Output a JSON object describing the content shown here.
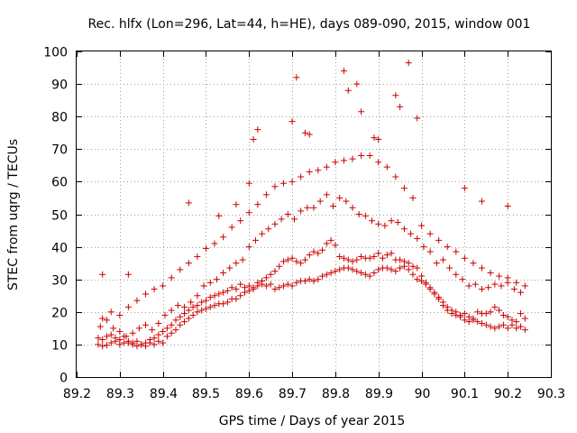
{
  "chart_data": {
    "type": "scatter",
    "title": "Rec. hlfx (Lon=296, Lat=44, h=HE), days 089-090, 2015, window 001",
    "xlabel": "GPS time / Days of year 2015",
    "ylabel": "STEC from uqrg / TECUs",
    "xlim": [
      89.2,
      90.3
    ],
    "ylim": [
      0,
      100
    ],
    "xticks": [
      "89.2",
      "89.3",
      "89.4",
      "89.5",
      "89.6",
      "89.7",
      "89.8",
      "89.9",
      "90",
      "90.1",
      "90.2",
      "90.3"
    ],
    "yticks": [
      "0",
      "10",
      "20",
      "30",
      "40",
      "50",
      "60",
      "70",
      "80",
      "90",
      "100"
    ],
    "grid": true,
    "marker": "plus",
    "color": "#cc0000",
    "series": [
      {
        "x": [
          89.25,
          89.26,
          89.27,
          89.28,
          89.29,
          89.3,
          89.31,
          89.32,
          89.33,
          89.34,
          89.35,
          89.36,
          89.37,
          89.38,
          89.39,
          89.4,
          89.41,
          89.42,
          89.43,
          89.44,
          89.45,
          89.46,
          89.47,
          89.48,
          89.49,
          89.5,
          89.51,
          89.52,
          89.53,
          89.54,
          89.55,
          89.56,
          89.57,
          89.58,
          89.59,
          89.6,
          89.61,
          89.62,
          89.63,
          89.64,
          89.65,
          89.66,
          89.67,
          89.68,
          89.69,
          89.7,
          89.71,
          89.72,
          89.73,
          89.74,
          89.75,
          89.76,
          89.77,
          89.78,
          89.79,
          89.8,
          89.81,
          89.82,
          89.83,
          89.84,
          89.85,
          89.86,
          89.87,
          89.88,
          89.89,
          89.9,
          89.91,
          89.92,
          89.93,
          89.94,
          89.95,
          89.96,
          89.97,
          89.98,
          89.99,
          90.0,
          90.01,
          90.02,
          90.03,
          90.04,
          90.05,
          90.06,
          90.07,
          90.08,
          90.09,
          90.1,
          90.11,
          90.12,
          90.13,
          90.14,
          90.15,
          90.16,
          90.17,
          90.18,
          90.19,
          90.2,
          90.21,
          90.22,
          90.23,
          90.24,
          89.25,
          89.26,
          89.27,
          89.28,
          89.29,
          89.3,
          89.31,
          89.32,
          89.33,
          89.34,
          89.35,
          89.36,
          89.37,
          89.38,
          89.39,
          89.4,
          89.41,
          89.42,
          89.43,
          89.44,
          89.45,
          89.46,
          89.47,
          89.48,
          89.49,
          89.5,
          89.51,
          89.52,
          89.53,
          89.54,
          89.55,
          89.56,
          89.57,
          89.58,
          89.59,
          89.6,
          89.61,
          89.62,
          89.63,
          89.64,
          89.65,
          89.66,
          89.67,
          89.68,
          89.69,
          89.7,
          89.71,
          89.72,
          89.73,
          89.74,
          89.75,
          89.76,
          89.77,
          89.78,
          89.79,
          89.8,
          89.81,
          89.82,
          89.83,
          89.84,
          89.85,
          89.86,
          89.87,
          89.88,
          89.89,
          89.9,
          89.91,
          89.92,
          89.93,
          89.94,
          89.95,
          89.96,
          89.97,
          89.98,
          89.99,
          90.0,
          90.01,
          90.02,
          90.03,
          90.04,
          90.05,
          90.06,
          90.07,
          90.08,
          90.09,
          90.1,
          90.11,
          90.12,
          90.13,
          90.14,
          90.15,
          90.16,
          90.17,
          90.18,
          90.19,
          90.2,
          90.21,
          90.22,
          90.23,
          90.24,
          89.255,
          89.27,
          89.285,
          89.3,
          89.315,
          89.33,
          89.345,
          89.36,
          89.375,
          89.39,
          89.405,
          89.42,
          89.435,
          89.45,
          89.465,
          89.48,
          89.495,
          89.51,
          89.525,
          89.54,
          89.555,
          89.57,
          89.585,
          89.6,
          89.615,
          89.63,
          89.645,
          89.66,
          89.675,
          89.69,
          89.705,
          89.72,
          89.735,
          89.75,
          89.765,
          89.78,
          89.795,
          89.81,
          89.825,
          89.84,
          89.855,
          89.87,
          89.885,
          89.9,
          89.915,
          89.93,
          89.945,
          89.96,
          89.975,
          89.99,
          90.005,
          90.02,
          90.035,
          90.05,
          90.065,
          90.08,
          90.095,
          90.11,
          90.125,
          90.14,
          90.155,
          90.17,
          90.185,
          90.2,
          90.215,
          90.23,
          89.26,
          89.28,
          89.3,
          89.32,
          89.34,
          89.36,
          89.38,
          89.4,
          89.42,
          89.44,
          89.46,
          89.48,
          89.5,
          89.52,
          89.54,
          89.56,
          89.58,
          89.6,
          89.62,
          89.64,
          89.66,
          89.68,
          89.7,
          89.72,
          89.74,
          89.76,
          89.78,
          89.8,
          89.82,
          89.84,
          89.86,
          89.88,
          89.9,
          89.92,
          89.94,
          89.96,
          89.98,
          90.0,
          90.02,
          90.04,
          90.06,
          90.08,
          90.1,
          90.12,
          90.14,
          90.16,
          90.18,
          90.2,
          90.22,
          90.24,
          89.26,
          89.32,
          89.46,
          89.53,
          89.57,
          89.6,
          89.61,
          89.62,
          89.7,
          89.71,
          89.73,
          89.74,
          89.82,
          89.83,
          89.85,
          89.86,
          89.89,
          89.9,
          89.94,
          89.95,
          89.97,
          89.99,
          90.1,
          90.14,
          90.2
        ],
        "y": [
          10.0,
          9.5,
          9.8,
          10.5,
          11.0,
          10.0,
          10.5,
          11.0,
          10.5,
          11.0,
          10.0,
          10.5,
          11.5,
          12.0,
          13.0,
          14.0,
          15.0,
          16.0,
          17.5,
          18.5,
          19.5,
          20.5,
          21.5,
          22.0,
          23.0,
          23.5,
          24.5,
          25.0,
          25.5,
          26.0,
          26.5,
          27.5,
          27.0,
          28.5,
          27.5,
          28.0,
          27.5,
          29.0,
          28.5,
          28.0,
          28.5,
          27.0,
          27.5,
          28.0,
          28.5,
          28.0,
          29.0,
          29.5,
          29.5,
          30.0,
          29.5,
          30.0,
          31.0,
          31.5,
          32.0,
          32.5,
          33.0,
          33.5,
          33.5,
          33.0,
          32.5,
          32.0,
          31.5,
          31.0,
          32.0,
          33.0,
          33.5,
          33.5,
          33.0,
          32.5,
          33.5,
          34.0,
          33.0,
          31.5,
          30.0,
          29.5,
          28.5,
          27.5,
          26.0,
          24.0,
          22.0,
          20.5,
          19.5,
          19.0,
          18.5,
          17.5,
          17.0,
          17.5,
          17.0,
          16.5,
          16.0,
          15.5,
          15.0,
          15.5,
          16.0,
          15.0,
          16.0,
          15.0,
          15.5,
          14.5,
          12.0,
          11.5,
          12.5,
          13.0,
          12.0,
          11.5,
          12.5,
          10.5,
          10.0,
          9.5,
          10.0,
          9.5,
          10.5,
          10.0,
          11.0,
          10.5,
          12.5,
          13.5,
          14.5,
          16.0,
          17.0,
          18.0,
          19.0,
          20.0,
          20.5,
          21.0,
          21.5,
          22.0,
          22.5,
          22.5,
          23.0,
          24.0,
          24.0,
          25.0,
          26.0,
          26.5,
          27.0,
          28.0,
          29.5,
          30.5,
          31.5,
          32.5,
          34.0,
          35.5,
          36.0,
          36.5,
          35.5,
          35.0,
          36.0,
          37.5,
          38.5,
          38.0,
          39.0,
          41.0,
          42.0,
          40.5,
          37.0,
          36.5,
          36.0,
          35.5,
          36.0,
          37.0,
          36.5,
          36.5,
          37.0,
          38.0,
          36.5,
          37.5,
          38.0,
          36.0,
          36.0,
          35.5,
          35.0,
          34.0,
          33.5,
          31.0,
          29.0,
          27.0,
          25.5,
          24.5,
          23.0,
          21.5,
          20.5,
          20.0,
          19.0,
          19.5,
          18.5,
          18.0,
          20.0,
          19.5,
          19.5,
          20.0,
          21.5,
          20.5,
          19.0,
          18.5,
          17.5,
          17.0,
          19.5,
          18.0,
          15.5,
          17.5,
          15.0,
          14.0,
          12.5,
          13.5,
          15.0,
          16.0,
          14.5,
          16.5,
          19.0,
          20.5,
          22.0,
          21.5,
          23.0,
          25.0,
          28.0,
          29.0,
          30.0,
          32.0,
          33.5,
          35.0,
          36.0,
          40.0,
          42.0,
          44.0,
          45.5,
          47.0,
          48.5,
          50.0,
          48.5,
          51.0,
          52.0,
          52.0,
          54.0,
          56.0,
          52.5,
          55.0,
          54.0,
          52.0,
          50.0,
          49.5,
          48.0,
          47.0,
          46.5,
          48.0,
          47.5,
          45.5,
          44.0,
          42.5,
          40.0,
          38.5,
          35.0,
          36.0,
          33.5,
          31.5,
          30.0,
          28.0,
          28.5,
          27.0,
          27.5,
          28.5,
          28.0,
          29.0,
          27.0,
          26.0,
          18.0,
          20.0,
          19.0,
          21.5,
          23.5,
          25.5,
          27.0,
          28.0,
          30.5,
          33.0,
          35.0,
          37.0,
          39.5,
          41.0,
          43.0,
          46.0,
          48.0,
          50.5,
          53.0,
          56.0,
          58.5,
          59.5,
          60.0,
          61.5,
          63.0,
          63.5,
          64.5,
          66.0,
          66.5,
          67.0,
          68.0,
          68.0,
          66.0,
          64.5,
          61.5,
          58.0,
          55.0,
          46.5,
          44.0,
          42.0,
          40.0,
          38.5,
          36.5,
          35.0,
          33.5,
          32.0,
          31.0,
          30.5,
          29.0,
          28.0,
          31.5,
          31.5,
          53.5,
          49.5,
          53.0,
          59.5,
          73.0,
          76.0,
          78.5,
          92.0,
          75.0,
          74.5,
          94.0,
          88.0,
          90.0,
          81.5,
          73.5,
          73.0,
          86.5,
          83.0,
          96.5,
          79.5,
          58.0,
          54.0,
          52.5
        ]
      }
    ]
  }
}
